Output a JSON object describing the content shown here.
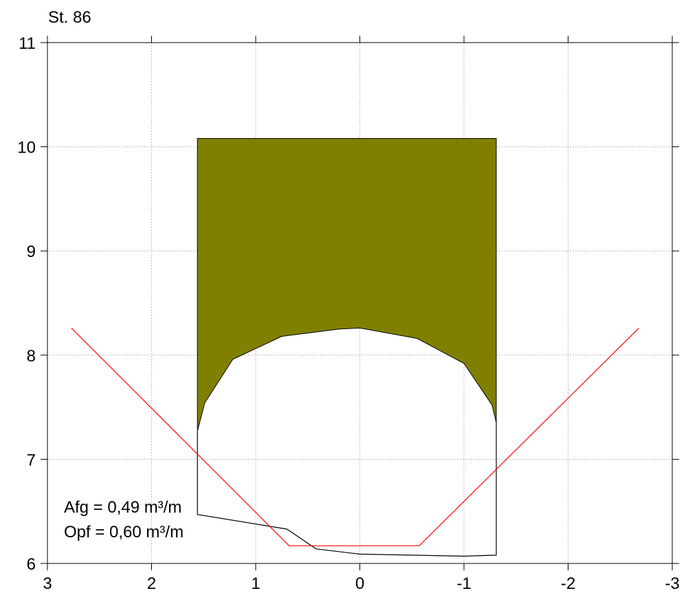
{
  "chart_data": {
    "type": "area",
    "title": "St. 86",
    "xlabel": "",
    "ylabel": "",
    "xlim": [
      3,
      -3
    ],
    "ylim": [
      6,
      11
    ],
    "x_reversed": true,
    "grid": true,
    "x_ticks": [
      3,
      2,
      1,
      0,
      -1,
      -2,
      -3
    ],
    "x_tick_labels": [
      "3",
      "2",
      "1",
      "0",
      "-1",
      "-2",
      "-3"
    ],
    "y_ticks": [
      6,
      7,
      8,
      9,
      10,
      11
    ],
    "y_tick_labels": [
      "6",
      "7",
      "8",
      "9",
      "10",
      "11"
    ],
    "colors": {
      "fill": "#808000",
      "profile": "#000000",
      "design": "#ff0000",
      "grid": "#bbbbbb"
    },
    "series": [
      {
        "kind": "filled-region",
        "color": "#808000",
        "points": [
          [
            1.56,
            10.08
          ],
          [
            -1.31,
            10.08
          ],
          [
            -1.31,
            7.35
          ],
          [
            -1.27,
            7.52
          ],
          [
            -1.0,
            7.92
          ],
          [
            -0.55,
            8.16
          ],
          [
            0.0,
            8.26
          ],
          [
            0.2,
            8.25
          ],
          [
            0.75,
            8.18
          ],
          [
            1.22,
            7.96
          ],
          [
            1.49,
            7.54
          ],
          [
            1.56,
            7.27
          ]
        ]
      },
      {
        "kind": "profile-line",
        "color": "#000000",
        "points": [
          [
            1.56,
            7.27
          ],
          [
            1.56,
            6.47
          ],
          [
            0.7,
            6.33
          ],
          [
            0.42,
            6.14
          ],
          [
            0.0,
            6.09
          ],
          [
            -1.0,
            6.07
          ],
          [
            -1.31,
            6.08
          ],
          [
            -1.31,
            7.35
          ]
        ]
      },
      {
        "kind": "design-profile",
        "color": "#ff0000",
        "points": [
          [
            2.77,
            8.26
          ],
          [
            0.68,
            6.17
          ],
          [
            -0.57,
            6.17
          ],
          [
            -2.68,
            8.26
          ]
        ]
      }
    ],
    "annotations": [
      "Afg = 0,49 m³/m",
      "Opf = 0,60 m³/m"
    ]
  }
}
